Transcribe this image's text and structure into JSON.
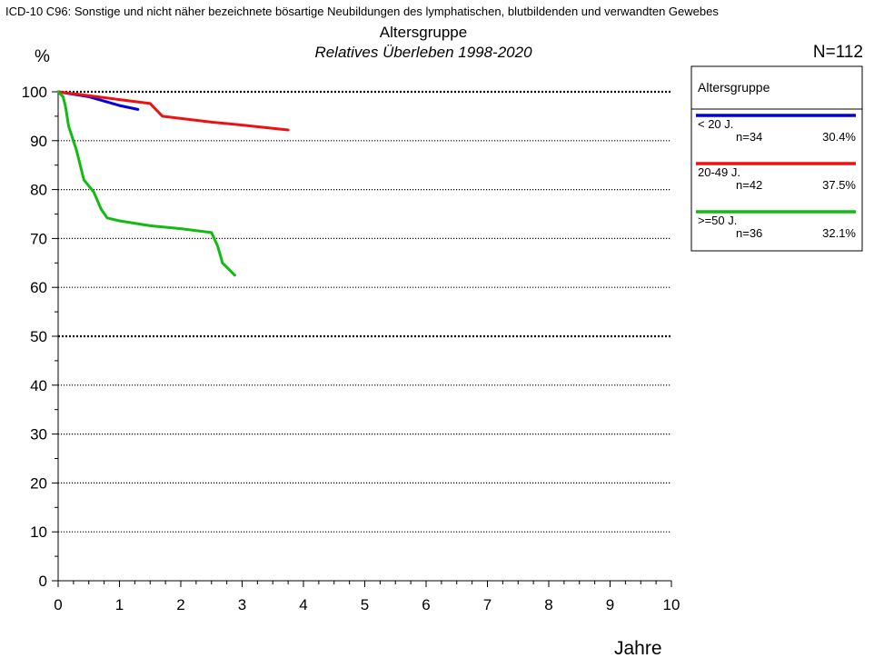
{
  "header": {
    "icd_line": "ICD-10 C96: Sonstige und nicht näher bezeichnete bösartige Neubildungen des lymphatischen, blutbildenden und verwandten Gewebes",
    "group_title": "Altersgruppe",
    "subtitle": "Relatives Überleben 1998-2020",
    "n_total": "N=112"
  },
  "chart_data": {
    "type": "line",
    "title": "Relatives Überleben 1998-2020",
    "xlabel": "Jahre",
    "ylabel": "%",
    "xlim": [
      0,
      10
    ],
    "ylim": [
      0,
      100
    ],
    "x_ticks": [
      "0",
      "1",
      "2",
      "3",
      "4",
      "5",
      "6",
      "7",
      "8",
      "9",
      "10"
    ],
    "y_ticks": [
      "0",
      "10",
      "20",
      "30",
      "40",
      "50",
      "60",
      "70",
      "80",
      "90",
      "100"
    ],
    "grid": "horizontal dotted",
    "legend_position": "top-right",
    "legend_title": "Altersgruppe",
    "series": [
      {
        "name": "< 20 J.",
        "n": "n=34",
        "share": "30.4%",
        "color": "#0000dd",
        "points": [
          [
            0,
            100
          ],
          [
            0.5,
            99
          ],
          [
            1.0,
            97.2
          ],
          [
            1.3,
            96.4
          ]
        ]
      },
      {
        "name": "20-49 J.",
        "n": "n=42",
        "share": "37.5%",
        "color": "#ee1111",
        "points": [
          [
            0,
            100
          ],
          [
            0.5,
            99.2
          ],
          [
            1.0,
            98.4
          ],
          [
            1.5,
            97.6
          ],
          [
            1.7,
            95
          ],
          [
            2.5,
            93.8
          ],
          [
            3.0,
            93.2
          ],
          [
            3.75,
            92.2
          ]
        ]
      },
      {
        "name": ">=50 J.",
        "n": "n=36",
        "share": "32.1%",
        "color": "#11bb11",
        "points": [
          [
            0,
            100
          ],
          [
            0.08,
            99
          ],
          [
            0.12,
            97
          ],
          [
            0.17,
            93
          ],
          [
            0.3,
            88
          ],
          [
            0.42,
            82
          ],
          [
            0.58,
            79.5
          ],
          [
            0.7,
            76
          ],
          [
            0.8,
            74.2
          ],
          [
            1.0,
            73.6
          ],
          [
            1.5,
            72.6
          ],
          [
            2.0,
            72
          ],
          [
            2.5,
            71.2
          ],
          [
            2.6,
            68.5
          ],
          [
            2.68,
            65
          ],
          [
            2.88,
            62.5
          ]
        ]
      }
    ]
  }
}
